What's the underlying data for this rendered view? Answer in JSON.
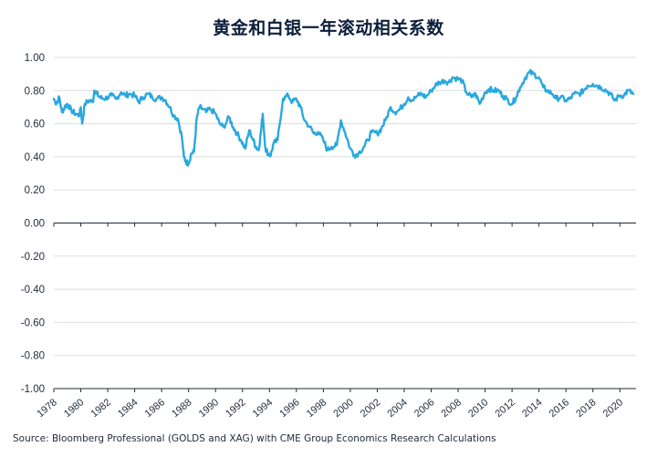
{
  "chart_data": {
    "type": "line",
    "title": "黄金和白银一年滚动相关系数",
    "xlabel": "",
    "ylabel": "",
    "xlim": [
      1978,
      2021.2
    ],
    "ylim": [
      -1.0,
      1.0
    ],
    "grid": true,
    "y_ticks": [
      "1.00",
      "0.80",
      "0.60",
      "0.40",
      "0.20",
      "0.00",
      "-0.20",
      "-0.40",
      "-0.60",
      "-0.80",
      "-1.00"
    ],
    "x_ticks": [
      "1978",
      "1980",
      "1982",
      "1984",
      "1986",
      "1988",
      "1990",
      "1992",
      "1994",
      "1996",
      "1998",
      "2000",
      "2002",
      "2004",
      "2006",
      "2008",
      "2010",
      "2012",
      "2014",
      "2016",
      "2018",
      "2020"
    ],
    "series_color": "#29a8de",
    "series": [
      {
        "name": "",
        "x": [
          1978.0,
          1978.2,
          1978.4,
          1978.6,
          1978.8,
          1979.0,
          1979.3,
          1979.6,
          1979.9,
          1980.0,
          1980.1,
          1980.3,
          1980.6,
          1980.9,
          1981.0,
          1981.2,
          1981.4,
          1981.7,
          1982.0,
          1982.3,
          1982.6,
          1983.0,
          1983.3,
          1983.6,
          1984.0,
          1984.3,
          1984.6,
          1985.0,
          1985.3,
          1985.6,
          1986.0,
          1986.3,
          1986.6,
          1986.9,
          1987.2,
          1987.5,
          1987.65,
          1987.8,
          1988.0,
          1988.2,
          1988.4,
          1988.6,
          1988.8,
          1989.0,
          1989.3,
          1989.6,
          1990.0,
          1990.3,
          1990.6,
          1991.0,
          1991.3,
          1991.6,
          1991.9,
          1992.2,
          1992.5,
          1992.8,
          1993.0,
          1993.2,
          1993.35,
          1993.5,
          1993.7,
          1993.9,
          1994.1,
          1994.3,
          1994.6,
          1995.0,
          1995.4,
          1995.7,
          1996.0,
          1996.3,
          1996.6,
          1997.0,
          1997.3,
          1997.6,
          1998.0,
          1998.3,
          1998.6,
          1999.0,
          1999.3,
          1999.6,
          2000.0,
          2000.3,
          2000.6,
          2001.0,
          2001.3,
          2001.6,
          2002.0,
          2002.3,
          2002.6,
          2003.0,
          2003.3,
          2003.6,
          2004.0,
          2004.3,
          2004.6,
          2005.0,
          2005.3,
          2005.6,
          2006.0,
          2006.3,
          2006.6,
          2007.0,
          2007.3,
          2007.6,
          2008.0,
          2008.3,
          2008.6,
          2009.0,
          2009.3,
          2009.6,
          2010.0,
          2010.3,
          2010.6,
          2011.0,
          2011.3,
          2011.6,
          2012.0,
          2012.3,
          2012.6,
          2013.0,
          2013.3,
          2013.6,
          2014.0,
          2014.3,
          2014.6,
          2015.0,
          2015.3,
          2015.6,
          2016.0,
          2016.3,
          2016.6,
          2017.0,
          2017.3,
          2017.6,
          2018.0,
          2018.3,
          2018.6,
          2019.0,
          2019.3,
          2019.6,
          2020.0,
          2020.3,
          2020.6,
          2021.0
        ],
        "values": [
          0.75,
          0.72,
          0.76,
          0.67,
          0.7,
          0.72,
          0.68,
          0.66,
          0.65,
          0.7,
          0.6,
          0.72,
          0.74,
          0.73,
          0.8,
          0.78,
          0.76,
          0.75,
          0.76,
          0.77,
          0.75,
          0.79,
          0.77,
          0.78,
          0.77,
          0.73,
          0.76,
          0.78,
          0.76,
          0.75,
          0.76,
          0.74,
          0.7,
          0.65,
          0.63,
          0.52,
          0.4,
          0.37,
          0.36,
          0.42,
          0.43,
          0.63,
          0.7,
          0.69,
          0.67,
          0.69,
          0.66,
          0.6,
          0.58,
          0.64,
          0.58,
          0.54,
          0.5,
          0.45,
          0.56,
          0.5,
          0.46,
          0.44,
          0.54,
          0.66,
          0.45,
          0.42,
          0.41,
          0.48,
          0.5,
          0.75,
          0.77,
          0.73,
          0.75,
          0.7,
          0.62,
          0.58,
          0.54,
          0.55,
          0.5,
          0.44,
          0.46,
          0.47,
          0.62,
          0.55,
          0.45,
          0.41,
          0.42,
          0.46,
          0.5,
          0.55,
          0.54,
          0.57,
          0.62,
          0.7,
          0.67,
          0.68,
          0.72,
          0.76,
          0.74,
          0.77,
          0.78,
          0.76,
          0.8,
          0.83,
          0.85,
          0.86,
          0.85,
          0.88,
          0.87,
          0.86,
          0.79,
          0.76,
          0.78,
          0.72,
          0.79,
          0.81,
          0.8,
          0.8,
          0.77,
          0.75,
          0.72,
          0.76,
          0.82,
          0.88,
          0.91,
          0.9,
          0.88,
          0.82,
          0.8,
          0.78,
          0.75,
          0.76,
          0.74,
          0.75,
          0.78,
          0.78,
          0.8,
          0.83,
          0.84,
          0.83,
          0.82,
          0.8,
          0.78,
          0.74,
          0.77,
          0.77,
          0.8,
          0.78
        ]
      }
    ]
  },
  "footer": {
    "source": "Source: Bloomberg Professional (GOLDS and XAG) with CME Group Economics Research Calculations"
  }
}
